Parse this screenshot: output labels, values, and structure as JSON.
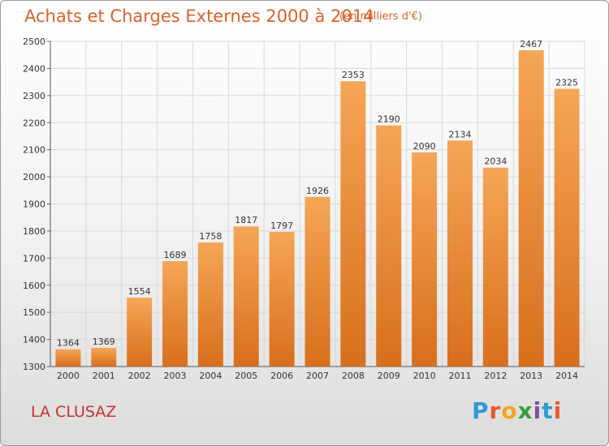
{
  "header": {
    "title": "Achats et Charges Externes 2000 à 2014",
    "subtitle": "(en milliers d'€)"
  },
  "footer": {
    "place": "LA CLUSAZ",
    "logo_text": "Proxiti"
  },
  "colors": {
    "bar_top": "#f5a656",
    "bar_bottom": "#d86f1c",
    "title": "#d9632a",
    "place": "#c9302c",
    "grid": "#d8d8d8"
  },
  "chart_data": {
    "type": "bar",
    "title": "Achats et Charges Externes 2000 à 2014",
    "subtitle": "(en milliers d'€)",
    "xlabel": "",
    "ylabel": "",
    "categories": [
      "2000",
      "2001",
      "2002",
      "2003",
      "2004",
      "2005",
      "2006",
      "2007",
      "2008",
      "2009",
      "2010",
      "2011",
      "2012",
      "2013",
      "2014"
    ],
    "values": [
      1364,
      1369,
      1554,
      1689,
      1758,
      1817,
      1797,
      1926,
      2353,
      2190,
      2090,
      2134,
      2034,
      2467,
      2325
    ],
    "data_labels": [
      "1364",
      "1369",
      "1554",
      "1689",
      "1758",
      "1817",
      "1797",
      "1926",
      "2353",
      "2190",
      "2090",
      "2134",
      "2034",
      "2467",
      "2325"
    ],
    "ylim": [
      1300,
      2500
    ],
    "yticks": [
      1300,
      1400,
      1500,
      1600,
      1700,
      1800,
      1900,
      2000,
      2100,
      2200,
      2300,
      2400,
      2500
    ],
    "grid": true,
    "legend": "none"
  }
}
